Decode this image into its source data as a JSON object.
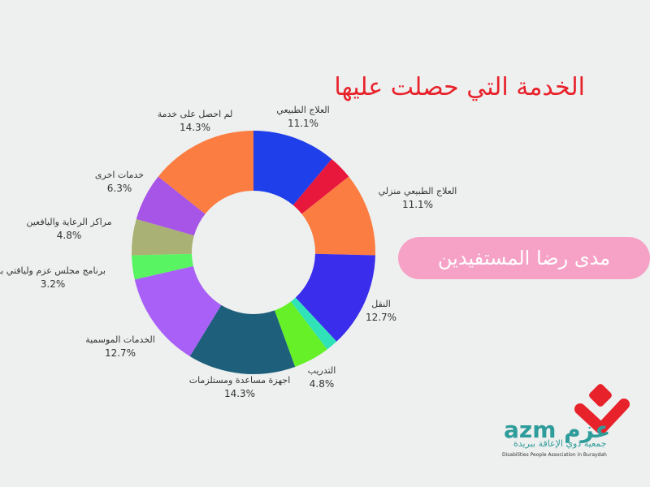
{
  "chart_title": "الخدمة التي حصلت عليها",
  "pill_text": "مدى رضا المستفيدين",
  "chart_data": {
    "type": "pie",
    "title": "الخدمة التي حصلت عليها",
    "slices": [
      {
        "name": "العلاج الطبيعي",
        "pct_label": "11.1%",
        "value": 11.1,
        "color": "#1f3fea",
        "show_label": true
      },
      {
        "name": "",
        "pct_label": "",
        "value": 3.2,
        "color": "#e8183c",
        "show_label": false
      },
      {
        "name": "العلاج الطبيعي منزلي",
        "pct_label": "11.1%",
        "value": 11.1,
        "color": "#fb7d41",
        "show_label": true
      },
      {
        "name": "النقل",
        "pct_label": "12.7%",
        "value": 12.7,
        "color": "#3a2dec",
        "show_label": true
      },
      {
        "name": "",
        "pct_label": "",
        "value": 1.6,
        "color": "#2fe2b8",
        "show_label": false
      },
      {
        "name": "التدريب",
        "pct_label": "4.8%",
        "value": 4.8,
        "color": "#66f028",
        "show_label": true
      },
      {
        "name": "اجهزة مساعدة ومستلزمات",
        "pct_label": "14.3%",
        "value": 14.3,
        "color": "#1e607c",
        "show_label": true
      },
      {
        "name": "الخدمات الموسمية",
        "pct_label": "12.7%",
        "value": 12.7,
        "color": "#a960f6",
        "show_label": true
      },
      {
        "name": "برنامج مجلس عزم ولياقتي با",
        "pct_label": "3.2%",
        "value": 3.2,
        "color": "#58f462",
        "show_label": true
      },
      {
        "name": "مراكز الرعاية واليافعين",
        "pct_label": "4.8%",
        "value": 4.8,
        "color": "#a9b274",
        "show_label": true
      },
      {
        "name": "خدمات اخرى",
        "pct_label": "6.3%",
        "value": 6.3,
        "color": "#a655e6",
        "show_label": true
      },
      {
        "name": "لم احصل على خدمة",
        "pct_label": "14.3%",
        "value": 14.3,
        "color": "#fb7d41",
        "show_label": true
      }
    ]
  },
  "logo": {
    "latin": "azm",
    "arabic": "عزم",
    "subtitle_ar": "جمعية ذوي الإعاقة ببريدة",
    "subtitle_en": "Disabilities People Association in Buraydah",
    "colors": {
      "teal": "#2e9c9a",
      "red": "#e8222b"
    }
  }
}
